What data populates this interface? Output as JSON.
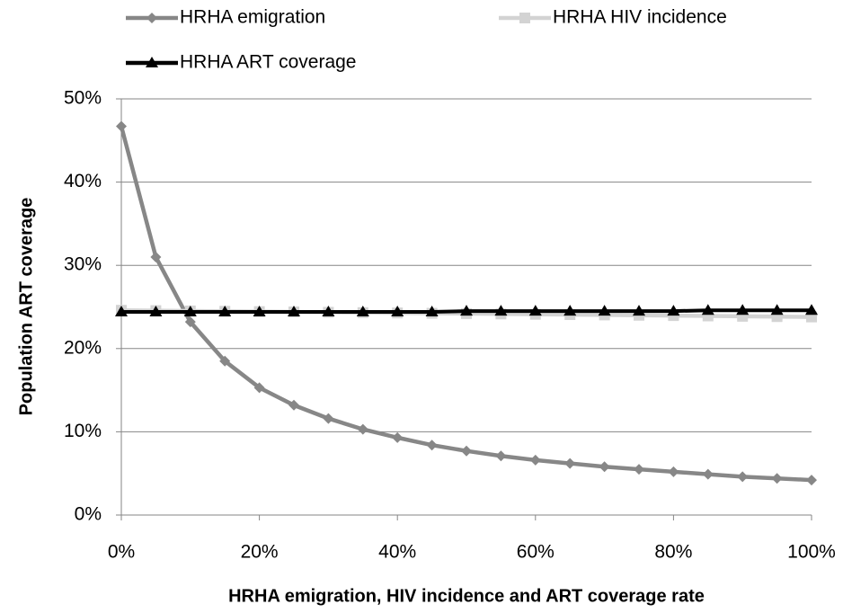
{
  "chart_data": {
    "type": "line",
    "x": [
      0,
      5,
      10,
      15,
      20,
      25,
      30,
      35,
      40,
      45,
      50,
      55,
      60,
      65,
      70,
      75,
      80,
      85,
      90,
      95,
      100
    ],
    "series": [
      {
        "name": "HRHA emigration",
        "color": "#878787",
        "marker": "diamond",
        "values": [
          46.7,
          31.0,
          23.2,
          18.5,
          15.3,
          13.2,
          11.6,
          10.3,
          9.3,
          8.4,
          7.7,
          7.1,
          6.6,
          6.2,
          5.8,
          5.5,
          5.2,
          4.9,
          4.6,
          4.4,
          4.2
        ]
      },
      {
        "name": "HRHA HIV incidence",
        "color": "#d3d3d3",
        "marker": "square",
        "values": [
          24.6,
          24.56,
          24.52,
          24.48,
          24.44,
          24.4,
          24.36,
          24.32,
          24.28,
          24.24,
          24.2,
          24.16,
          24.12,
          24.08,
          24.04,
          24.0,
          23.96,
          23.92,
          23.88,
          23.84,
          23.8
        ]
      },
      {
        "name": "HRHA ART coverage",
        "color": "#000000",
        "marker": "triangle",
        "values": [
          24.4,
          24.4,
          24.4,
          24.4,
          24.4,
          24.4,
          24.4,
          24.4,
          24.4,
          24.4,
          24.5,
          24.5,
          24.5,
          24.5,
          24.5,
          24.5,
          24.5,
          24.6,
          24.6,
          24.6,
          24.6
        ]
      }
    ],
    "xlabel": "HRHA emigration, HIV incidence and ART coverage rate",
    "ylabel": "Population ART coverage",
    "xlim": [
      0,
      100
    ],
    "xticks": [
      {
        "value": 0,
        "label": "0%"
      },
      {
        "value": 20,
        "label": "20%"
      },
      {
        "value": 40,
        "label": "40%"
      },
      {
        "value": 60,
        "label": "60%"
      },
      {
        "value": 80,
        "label": "80%"
      },
      {
        "value": 100,
        "label": "100%"
      }
    ],
    "ylim": [
      0,
      50
    ],
    "yticks": [
      {
        "value": 0,
        "label": "0%"
      },
      {
        "value": 10,
        "label": "10%"
      },
      {
        "value": 20,
        "label": "20%"
      },
      {
        "value": 30,
        "label": "30%"
      },
      {
        "value": 40,
        "label": "40%"
      },
      {
        "value": 50,
        "label": "50%"
      }
    ],
    "grid": true,
    "legend": "top"
  }
}
